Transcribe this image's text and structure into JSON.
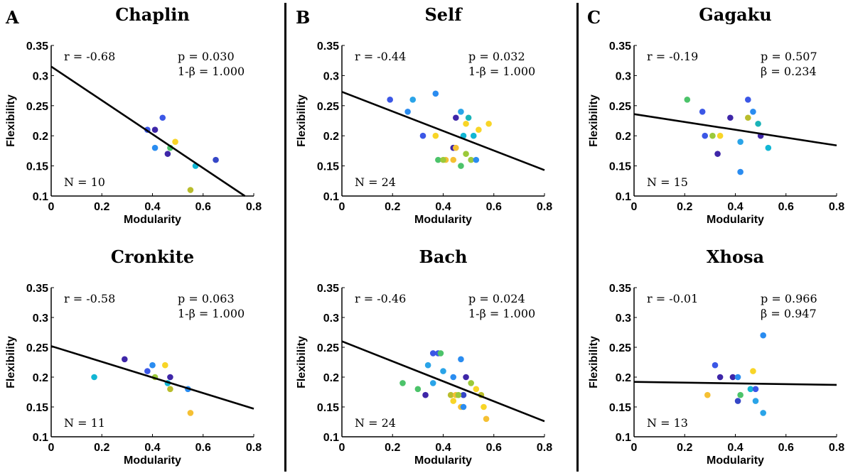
{
  "panel_letters": [
    "A",
    "B",
    "C"
  ],
  "chart_data": [
    {
      "type": "scatter",
      "title": "Chaplin",
      "xlabel": "Modularity",
      "ylabel": "Flexibility",
      "xlim": [
        0,
        0.8
      ],
      "ylim": [
        0.1,
        0.35
      ],
      "xticks": [
        "0",
        "0.2",
        "0.4",
        "0.6",
        "0.8"
      ],
      "yticks": [
        "0.1",
        "0.15",
        "0.2",
        "0.25",
        "0.3",
        "0.35"
      ],
      "r_text": "r = -0.68",
      "p_text": "p = 0.030",
      "power_text": "1-β = 1.000",
      "n_text": "N = 10",
      "fit_line": {
        "x": [
          0,
          0.765
        ],
        "y": [
          0.315,
          0.1
        ]
      },
      "points": [
        {
          "x": 0.38,
          "y": 0.21,
          "color": "#3b57e6"
        },
        {
          "x": 0.41,
          "y": 0.21,
          "color": "#3e26a8"
        },
        {
          "x": 0.44,
          "y": 0.23,
          "color": "#3b57e6"
        },
        {
          "x": 0.41,
          "y": 0.18,
          "color": "#2a8cf0"
        },
        {
          "x": 0.46,
          "y": 0.17,
          "color": "#3e26a8"
        },
        {
          "x": 0.47,
          "y": 0.18,
          "color": "#4cc36a"
        },
        {
          "x": 0.49,
          "y": 0.19,
          "color": "#f8d527"
        },
        {
          "x": 0.57,
          "y": 0.15,
          "color": "#12b6d4"
        },
        {
          "x": 0.55,
          "y": 0.11,
          "color": "#b9bd2c"
        },
        {
          "x": 0.65,
          "y": 0.16,
          "color": "#3547c7"
        }
      ]
    },
    {
      "type": "scatter",
      "title": "Cronkite",
      "xlabel": "Modularity",
      "ylabel": "Flexibility",
      "xlim": [
        0,
        0.8
      ],
      "ylim": [
        0.1,
        0.35
      ],
      "xticks": [
        "0",
        "0.2",
        "0.4",
        "0.6",
        "0.8"
      ],
      "yticks": [
        "0.1",
        "0.15",
        "0.2",
        "0.25",
        "0.3",
        "0.35"
      ],
      "r_text": "r = -0.58",
      "p_text": "p = 0.063",
      "power_text": "1-β = 1.000",
      "n_text": "N = 11",
      "fit_line": {
        "x": [
          0,
          0.8
        ],
        "y": [
          0.252,
          0.147
        ]
      },
      "points": [
        {
          "x": 0.17,
          "y": 0.2,
          "color": "#12b6d4"
        },
        {
          "x": 0.29,
          "y": 0.23,
          "color": "#3e26a8"
        },
        {
          "x": 0.38,
          "y": 0.21,
          "color": "#3b57e6"
        },
        {
          "x": 0.4,
          "y": 0.22,
          "color": "#2a8cf0"
        },
        {
          "x": 0.41,
          "y": 0.2,
          "color": "#9bc93a"
        },
        {
          "x": 0.45,
          "y": 0.22,
          "color": "#f8d527"
        },
        {
          "x": 0.46,
          "y": 0.19,
          "color": "#12b6d4"
        },
        {
          "x": 0.47,
          "y": 0.2,
          "color": "#3e26a8"
        },
        {
          "x": 0.47,
          "y": 0.18,
          "color": "#b9bd2c"
        },
        {
          "x": 0.54,
          "y": 0.18,
          "color": "#2a8cf0"
        },
        {
          "x": 0.55,
          "y": 0.14,
          "color": "#f5c033"
        }
      ]
    },
    {
      "type": "scatter",
      "title": "Self",
      "xlabel": "Modularity",
      "ylabel": "Flexibility",
      "xlim": [
        0,
        0.8
      ],
      "ylim": [
        0.1,
        0.35
      ],
      "xticks": [
        "0",
        "0.2",
        "0.4",
        "0.6",
        "0.8"
      ],
      "yticks": [
        "0.1",
        "0.15",
        "0.2",
        "0.25",
        "0.3",
        "0.35"
      ],
      "r_text": "r = -0.44",
      "p_text": "p = 0.032",
      "power_text": "1-β = 1.000",
      "n_text": "N = 24",
      "fit_line": {
        "x": [
          0,
          0.8
        ],
        "y": [
          0.273,
          0.143
        ]
      },
      "points": [
        {
          "x": 0.19,
          "y": 0.26,
          "color": "#3b57e6"
        },
        {
          "x": 0.26,
          "y": 0.24,
          "color": "#2a8cf0"
        },
        {
          "x": 0.28,
          "y": 0.26,
          "color": "#2aa4e8"
        },
        {
          "x": 0.37,
          "y": 0.27,
          "color": "#2a8cf0"
        },
        {
          "x": 0.32,
          "y": 0.2,
          "color": "#3b57e6"
        },
        {
          "x": 0.37,
          "y": 0.2,
          "color": "#f8d527"
        },
        {
          "x": 0.45,
          "y": 0.23,
          "color": "#3e26a8"
        },
        {
          "x": 0.47,
          "y": 0.24,
          "color": "#2aa4e8"
        },
        {
          "x": 0.49,
          "y": 0.22,
          "color": "#f8d527"
        },
        {
          "x": 0.5,
          "y": 0.23,
          "color": "#1ab3b8"
        },
        {
          "x": 0.48,
          "y": 0.2,
          "color": "#12b6d4"
        },
        {
          "x": 0.52,
          "y": 0.2,
          "color": "#12b6d4"
        },
        {
          "x": 0.54,
          "y": 0.21,
          "color": "#f8d527"
        },
        {
          "x": 0.58,
          "y": 0.22,
          "color": "#f8d527"
        },
        {
          "x": 0.44,
          "y": 0.18,
          "color": "#3e26a8"
        },
        {
          "x": 0.45,
          "y": 0.18,
          "color": "#f5c033"
        },
        {
          "x": 0.49,
          "y": 0.17,
          "color": "#9bc93a"
        },
        {
          "x": 0.38,
          "y": 0.16,
          "color": "#4cc36a"
        },
        {
          "x": 0.41,
          "y": 0.16,
          "color": "#f5c033"
        },
        {
          "x": 0.44,
          "y": 0.16,
          "color": "#f5c033"
        },
        {
          "x": 0.47,
          "y": 0.15,
          "color": "#4cc36a"
        },
        {
          "x": 0.51,
          "y": 0.16,
          "color": "#9bc93a"
        },
        {
          "x": 0.53,
          "y": 0.16,
          "color": "#2a8cf0"
        },
        {
          "x": 0.4,
          "y": 0.16,
          "color": "#9bc93a"
        }
      ]
    },
    {
      "type": "scatter",
      "title": "Bach",
      "xlabel": "Modularity",
      "ylabel": "Flexibility",
      "xlim": [
        0,
        0.8
      ],
      "ylim": [
        0.1,
        0.35
      ],
      "xticks": [
        "0",
        "0.2",
        "0.4",
        "0.6",
        "0.8"
      ],
      "yticks": [
        "0.1",
        "0.15",
        "0.2",
        "0.25",
        "0.3",
        "0.35"
      ],
      "r_text": "r = -0.46",
      "p_text": "p = 0.024",
      "power_text": "1-β = 1.000",
      "n_text": "N = 24",
      "fit_line": {
        "x": [
          0,
          0.8
        ],
        "y": [
          0.26,
          0.126
        ]
      },
      "points": [
        {
          "x": 0.24,
          "y": 0.19,
          "color": "#4cc36a"
        },
        {
          "x": 0.3,
          "y": 0.18,
          "color": "#4cc36a"
        },
        {
          "x": 0.33,
          "y": 0.17,
          "color": "#3e26a8"
        },
        {
          "x": 0.34,
          "y": 0.22,
          "color": "#2aa4e8"
        },
        {
          "x": 0.36,
          "y": 0.24,
          "color": "#3b57e6"
        },
        {
          "x": 0.38,
          "y": 0.24,
          "color": "#3b57e6"
        },
        {
          "x": 0.39,
          "y": 0.24,
          "color": "#4cc36a"
        },
        {
          "x": 0.36,
          "y": 0.19,
          "color": "#2aa4e8"
        },
        {
          "x": 0.4,
          "y": 0.21,
          "color": "#2aa4e8"
        },
        {
          "x": 0.44,
          "y": 0.2,
          "color": "#2a8cf0"
        },
        {
          "x": 0.47,
          "y": 0.23,
          "color": "#2a8cf0"
        },
        {
          "x": 0.49,
          "y": 0.2,
          "color": "#3e26a8"
        },
        {
          "x": 0.51,
          "y": 0.19,
          "color": "#9bc93a"
        },
        {
          "x": 0.53,
          "y": 0.18,
          "color": "#f8d527"
        },
        {
          "x": 0.55,
          "y": 0.17,
          "color": "#b9bd2c"
        },
        {
          "x": 0.43,
          "y": 0.17,
          "color": "#b9bd2c"
        },
        {
          "x": 0.45,
          "y": 0.17,
          "color": "#f5c033"
        },
        {
          "x": 0.44,
          "y": 0.16,
          "color": "#f8d527"
        },
        {
          "x": 0.48,
          "y": 0.17,
          "color": "#3547c7"
        },
        {
          "x": 0.47,
          "y": 0.15,
          "color": "#f5c033"
        },
        {
          "x": 0.48,
          "y": 0.15,
          "color": "#2a8cf0"
        },
        {
          "x": 0.56,
          "y": 0.15,
          "color": "#f8d527"
        },
        {
          "x": 0.57,
          "y": 0.13,
          "color": "#f5c033"
        },
        {
          "x": 0.46,
          "y": 0.17,
          "color": "#9bc93a"
        }
      ]
    },
    {
      "type": "scatter",
      "title": "Gagaku",
      "xlabel": "Modularity",
      "ylabel": "Flexibility",
      "xlim": [
        0,
        0.8
      ],
      "ylim": [
        0.1,
        0.35
      ],
      "xticks": [
        "0",
        "0.2",
        "0.4",
        "0.6",
        "0.8"
      ],
      "yticks": [
        "0.1",
        "0.15",
        "0.2",
        "0.25",
        "0.3",
        "0.35"
      ],
      "r_text": "r = -0.19",
      "p_text": "p = 0.507",
      "power_text": "β = 0.234",
      "n_text": "N = 15",
      "fit_line": {
        "x": [
          0,
          0.8
        ],
        "y": [
          0.236,
          0.184
        ]
      },
      "points": [
        {
          "x": 0.21,
          "y": 0.26,
          "color": "#4cc36a"
        },
        {
          "x": 0.27,
          "y": 0.24,
          "color": "#3b57e6"
        },
        {
          "x": 0.28,
          "y": 0.2,
          "color": "#3b57e6"
        },
        {
          "x": 0.31,
          "y": 0.2,
          "color": "#9bc93a"
        },
        {
          "x": 0.34,
          "y": 0.2,
          "color": "#f8d527"
        },
        {
          "x": 0.33,
          "y": 0.17,
          "color": "#3e26a8"
        },
        {
          "x": 0.38,
          "y": 0.23,
          "color": "#3e26a8"
        },
        {
          "x": 0.42,
          "y": 0.19,
          "color": "#2aa4e8"
        },
        {
          "x": 0.42,
          "y": 0.14,
          "color": "#2a8cf0"
        },
        {
          "x": 0.45,
          "y": 0.26,
          "color": "#3b57e6"
        },
        {
          "x": 0.45,
          "y": 0.23,
          "color": "#b9bd2c"
        },
        {
          "x": 0.47,
          "y": 0.24,
          "color": "#2a8cf0"
        },
        {
          "x": 0.49,
          "y": 0.22,
          "color": "#1ab3b8"
        },
        {
          "x": 0.5,
          "y": 0.2,
          "color": "#3e26a8"
        },
        {
          "x": 0.53,
          "y": 0.18,
          "color": "#12b6d4"
        }
      ]
    },
    {
      "type": "scatter",
      "title": "Xhosa",
      "xlabel": "Modularity",
      "ylabel": "Flexibility",
      "xlim": [
        0,
        0.8
      ],
      "ylim": [
        0.1,
        0.35
      ],
      "xticks": [
        "0",
        "0.2",
        "0.4",
        "0.6",
        "0.8"
      ],
      "yticks": [
        "0.1",
        "0.15",
        "0.2",
        "0.25",
        "0.3",
        "0.35"
      ],
      "r_text": "r = -0.01",
      "p_text": "p = 0.966",
      "power_text": "β = 0.947",
      "n_text": "N = 13",
      "fit_line": {
        "x": [
          0,
          0.8
        ],
        "y": [
          0.192,
          0.187
        ]
      },
      "points": [
        {
          "x": 0.29,
          "y": 0.17,
          "color": "#f5c033"
        },
        {
          "x": 0.32,
          "y": 0.22,
          "color": "#3b57e6"
        },
        {
          "x": 0.34,
          "y": 0.2,
          "color": "#3e26a8"
        },
        {
          "x": 0.39,
          "y": 0.2,
          "color": "#3e26a8"
        },
        {
          "x": 0.41,
          "y": 0.2,
          "color": "#2a8cf0"
        },
        {
          "x": 0.41,
          "y": 0.16,
          "color": "#3547c7"
        },
        {
          "x": 0.42,
          "y": 0.17,
          "color": "#4cc36a"
        },
        {
          "x": 0.46,
          "y": 0.18,
          "color": "#12b6d4"
        },
        {
          "x": 0.47,
          "y": 0.21,
          "color": "#f8d527"
        },
        {
          "x": 0.48,
          "y": 0.18,
          "color": "#3b57e6"
        },
        {
          "x": 0.48,
          "y": 0.16,
          "color": "#2aa4e8"
        },
        {
          "x": 0.51,
          "y": 0.27,
          "color": "#2a8cf0"
        },
        {
          "x": 0.51,
          "y": 0.14,
          "color": "#2aa4e8"
        }
      ]
    }
  ]
}
